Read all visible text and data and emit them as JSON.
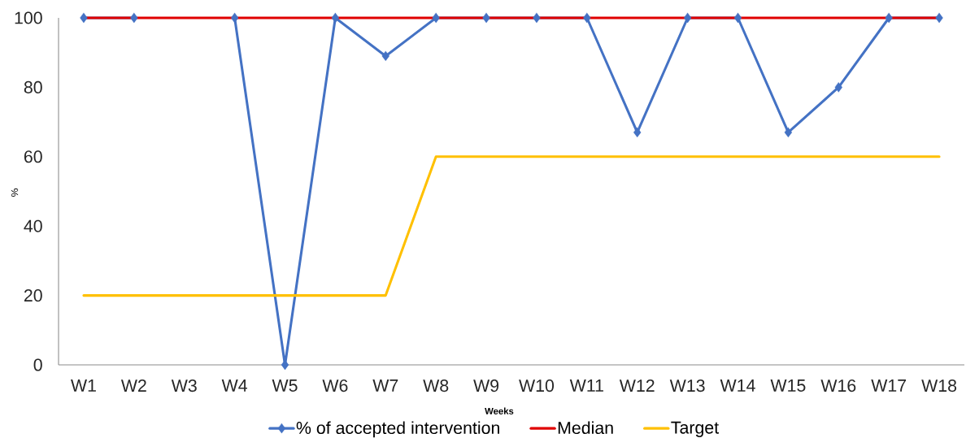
{
  "chart_data": {
    "type": "line",
    "xlabel": "Weeks",
    "ylabel": "%",
    "categories": [
      "W1",
      "W2",
      "W3",
      "W4",
      "W5",
      "W6",
      "W7",
      "W8",
      "W9",
      "W10",
      "W11",
      "W12",
      "W13",
      "W14",
      "W15",
      "W16",
      "W17",
      "W18"
    ],
    "series": [
      {
        "name": "% of accepted intervention",
        "color": "#4472c4",
        "marker": "diamond",
        "values": [
          100,
          100,
          null,
          100,
          0,
          100,
          89,
          100,
          100,
          100,
          100,
          67,
          100,
          100,
          67,
          80,
          100,
          100
        ]
      },
      {
        "name": "Median",
        "color": "#e00000",
        "marker": "none",
        "values": [
          100,
          100,
          100,
          100,
          100,
          100,
          100,
          100,
          100,
          100,
          100,
          100,
          100,
          100,
          100,
          100,
          100,
          100
        ]
      },
      {
        "name": "Target",
        "color": "#ffc000",
        "marker": "none",
        "values": [
          20,
          20,
          20,
          20,
          20,
          20,
          20,
          60,
          60,
          60,
          60,
          60,
          60,
          60,
          60,
          60,
          60,
          60
        ]
      }
    ],
    "ylim": [
      0,
      100
    ],
    "yticks": [
      0,
      20,
      40,
      60,
      80,
      100
    ],
    "legend": "bottom"
  }
}
